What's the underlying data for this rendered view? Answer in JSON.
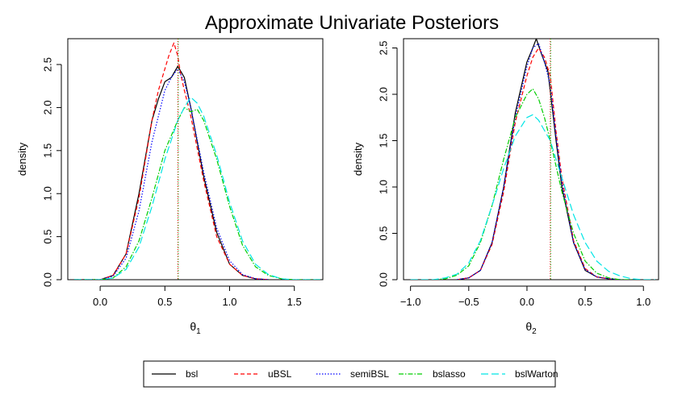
{
  "title": "Approximate Univariate Posteriors",
  "series_styles": [
    {
      "name": "bsl",
      "color": "#000000",
      "dash": ""
    },
    {
      "name": "uBSL",
      "color": "#ff0000",
      "dash": "5,3"
    },
    {
      "name": "semiBSL",
      "color": "#0000ff",
      "dash": "1.5,2"
    },
    {
      "name": "bslasso",
      "color": "#00cd00",
      "dash": "6,2,1.5,2"
    },
    {
      "name": "bslWarton",
      "color": "#00e5e5",
      "dash": "9,4"
    }
  ],
  "chart_data": [
    {
      "type": "line",
      "panel": "theta1",
      "xlabel_main": "θ",
      "xlabel_sub": "1",
      "ylabel": "density",
      "xlim": [
        -0.25,
        1.72
      ],
      "ylim": [
        0,
        2.8
      ],
      "xticks": [
        "0.0",
        "0.5",
        "1.0",
        "1.5"
      ],
      "yticks": [
        "0.0",
        "0.5",
        "1.0",
        "1.5",
        "2.0",
        "2.5"
      ],
      "true_value": 0.6,
      "series": [
        {
          "name": "bsl",
          "x": [
            -0.2,
            0.0,
            0.1,
            0.2,
            0.3,
            0.4,
            0.45,
            0.5,
            0.55,
            0.6,
            0.65,
            0.7,
            0.8,
            0.9,
            1.0,
            1.1,
            1.2,
            1.3
          ],
          "y": [
            0.0,
            0.0,
            0.05,
            0.3,
            1.0,
            1.85,
            2.1,
            2.3,
            2.35,
            2.48,
            2.35,
            2.0,
            1.2,
            0.55,
            0.18,
            0.05,
            0.01,
            0.0
          ]
        },
        {
          "name": "uBSL",
          "x": [
            -0.2,
            0.0,
            0.1,
            0.2,
            0.3,
            0.4,
            0.45,
            0.5,
            0.53,
            0.57,
            0.6,
            0.62,
            0.65,
            0.7,
            0.8,
            0.9,
            1.0,
            1.1,
            1.2,
            1.3
          ],
          "y": [
            0.0,
            0.0,
            0.05,
            0.3,
            0.95,
            1.85,
            2.2,
            2.45,
            2.6,
            2.75,
            2.6,
            2.4,
            2.2,
            1.9,
            1.15,
            0.5,
            0.18,
            0.05,
            0.01,
            0.0
          ]
        },
        {
          "name": "semiBSL",
          "x": [
            -0.2,
            0.0,
            0.1,
            0.2,
            0.3,
            0.4,
            0.5,
            0.55,
            0.6,
            0.65,
            0.7,
            0.8,
            0.9,
            1.0,
            1.1,
            1.2,
            1.3
          ],
          "y": [
            0.0,
            0.0,
            0.04,
            0.25,
            0.8,
            1.6,
            2.2,
            2.35,
            2.45,
            2.3,
            2.0,
            1.25,
            0.6,
            0.22,
            0.06,
            0.01,
            0.0
          ]
        },
        {
          "name": "bslasso",
          "x": [
            -0.2,
            0.0,
            0.1,
            0.2,
            0.3,
            0.4,
            0.5,
            0.6,
            0.65,
            0.7,
            0.75,
            0.8,
            0.9,
            1.0,
            1.1,
            1.2,
            1.3,
            1.4,
            1.5,
            1.7
          ],
          "y": [
            0.0,
            0.0,
            0.02,
            0.15,
            0.45,
            0.95,
            1.5,
            1.85,
            2.0,
            1.95,
            1.98,
            1.85,
            1.4,
            0.85,
            0.4,
            0.15,
            0.05,
            0.01,
            0.0,
            0.0
          ]
        },
        {
          "name": "bslWarton",
          "x": [
            -0.2,
            0.0,
            0.1,
            0.2,
            0.3,
            0.4,
            0.5,
            0.6,
            0.65,
            0.7,
            0.75,
            0.8,
            0.9,
            1.0,
            1.1,
            1.2,
            1.3,
            1.4,
            1.5,
            1.7
          ],
          "y": [
            0.0,
            0.0,
            0.02,
            0.12,
            0.38,
            0.85,
            1.4,
            1.85,
            2.0,
            2.12,
            2.05,
            1.9,
            1.45,
            0.9,
            0.45,
            0.18,
            0.06,
            0.01,
            0.0,
            0.0
          ]
        }
      ]
    },
    {
      "type": "line",
      "panel": "theta2",
      "xlabel_main": "θ",
      "xlabel_sub": "2",
      "ylabel": "density",
      "xlim": [
        -1.06,
        1.13
      ],
      "ylim": [
        0,
        2.6
      ],
      "xticks": [
        "−1.0",
        "−0.5",
        "0.0",
        "0.5",
        "1.0"
      ],
      "yticks": [
        "0.0",
        "0.5",
        "1.0",
        "1.5",
        "2.0",
        "2.5"
      ],
      "true_value": 0.2,
      "series": [
        {
          "name": "bsl",
          "x": [
            -0.6,
            -0.5,
            -0.4,
            -0.3,
            -0.2,
            -0.1,
            0.0,
            0.05,
            0.08,
            0.12,
            0.18,
            0.25,
            0.3,
            0.4,
            0.5,
            0.6,
            0.7,
            0.8
          ],
          "y": [
            0.0,
            0.02,
            0.1,
            0.4,
            1.0,
            1.8,
            2.35,
            2.5,
            2.6,
            2.45,
            2.25,
            1.5,
            1.0,
            0.4,
            0.1,
            0.03,
            0.01,
            0.0
          ]
        },
        {
          "name": "uBSL",
          "x": [
            -0.6,
            -0.5,
            -0.4,
            -0.3,
            -0.2,
            -0.1,
            0.0,
            0.05,
            0.1,
            0.15,
            0.2,
            0.25,
            0.3,
            0.4,
            0.5,
            0.6,
            0.7,
            0.8
          ],
          "y": [
            0.0,
            0.02,
            0.1,
            0.38,
            0.95,
            1.7,
            2.2,
            2.4,
            2.5,
            2.4,
            2.2,
            1.6,
            1.1,
            0.42,
            0.12,
            0.03,
            0.01,
            0.0
          ]
        },
        {
          "name": "semiBSL",
          "x": [
            -0.6,
            -0.5,
            -0.4,
            -0.3,
            -0.2,
            -0.1,
            0.0,
            0.05,
            0.1,
            0.15,
            0.2,
            0.25,
            0.3,
            0.4,
            0.5,
            0.6,
            0.7,
            0.8
          ],
          "y": [
            0.0,
            0.02,
            0.1,
            0.4,
            1.0,
            1.75,
            2.3,
            2.5,
            2.55,
            2.35,
            2.1,
            1.55,
            1.05,
            0.4,
            0.11,
            0.03,
            0.01,
            0.0
          ]
        },
        {
          "name": "bslasso",
          "x": [
            -0.8,
            -0.7,
            -0.6,
            -0.5,
            -0.4,
            -0.3,
            -0.2,
            -0.1,
            0.0,
            0.05,
            0.1,
            0.15,
            0.2,
            0.3,
            0.4,
            0.5,
            0.6,
            0.7,
            0.8,
            0.9
          ],
          "y": [
            0.0,
            0.01,
            0.05,
            0.15,
            0.4,
            0.8,
            1.3,
            1.75,
            2.0,
            2.06,
            1.95,
            1.75,
            1.5,
            0.95,
            0.5,
            0.2,
            0.07,
            0.02,
            0.0,
            0.0
          ]
        },
        {
          "name": "bslWarton",
          "x": [
            -1.0,
            -0.8,
            -0.7,
            -0.6,
            -0.5,
            -0.4,
            -0.3,
            -0.2,
            -0.1,
            0.0,
            0.05,
            0.1,
            0.2,
            0.3,
            0.4,
            0.5,
            0.6,
            0.7,
            0.8,
            0.9,
            1.0,
            1.1
          ],
          "y": [
            0.0,
            0.0,
            0.02,
            0.06,
            0.18,
            0.42,
            0.8,
            1.2,
            1.55,
            1.75,
            1.78,
            1.72,
            1.5,
            1.1,
            0.7,
            0.4,
            0.2,
            0.09,
            0.04,
            0.01,
            0.0,
            0.0
          ]
        }
      ]
    }
  ]
}
